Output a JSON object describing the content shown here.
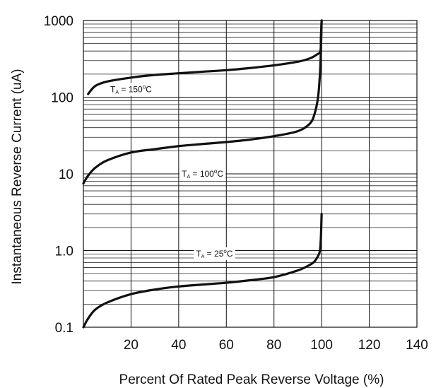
{
  "chart_data": {
    "type": "line",
    "title": "",
    "xlabel": "Percent  Of  Rated  Peak Reverse  Voltage (%)",
    "ylabel": "Instantaneous  Reverse Current (uA)",
    "x_scale": "linear",
    "y_scale": "log",
    "xlim": [
      0,
      140
    ],
    "ylim": [
      0.1,
      1000
    ],
    "x_ticks": [
      20,
      40,
      60,
      80,
      100,
      120,
      140
    ],
    "x_tick_labels": [
      "20",
      "40",
      "60",
      "80",
      "100",
      "120",
      "140"
    ],
    "y_ticks": [
      0.1,
      1,
      10,
      100,
      1000
    ],
    "y_tick_labels": [
      "0.1",
      "1.0",
      "10",
      "100",
      "1000"
    ],
    "grid": true,
    "legend": "none",
    "series": [
      {
        "annotation": {
          "main": "T",
          "sub": "A",
          "rest": " = 150",
          "deg": "o",
          "unit": "C"
        },
        "x": [
          2,
          5,
          10,
          20,
          30,
          40,
          50,
          60,
          70,
          80,
          90,
          95,
          98,
          99.5,
          99.7,
          100
        ],
        "y": [
          110,
          140,
          160,
          180,
          195,
          205,
          215,
          225,
          240,
          260,
          290,
          320,
          360,
          400,
          600,
          1000
        ]
      },
      {
        "annotation": {
          "main": "T",
          "sub": "A",
          "rest": " = 100",
          "deg": "o",
          "unit": "C"
        },
        "x": [
          0,
          2,
          5,
          10,
          20,
          30,
          40,
          50,
          60,
          70,
          80,
          90,
          95,
          97,
          98.5,
          99.3,
          99.7,
          100
        ],
        "y": [
          7.5,
          9.5,
          12,
          15,
          19,
          21,
          23,
          24.5,
          26,
          28,
          31,
          36,
          45,
          60,
          100,
          200,
          400,
          1000
        ]
      },
      {
        "annotation": {
          "main": "T",
          "sub": "A",
          "rest": " = 25",
          "deg": "o",
          "unit": "C"
        },
        "x": [
          0,
          2,
          5,
          10,
          20,
          30,
          40,
          50,
          60,
          70,
          80,
          90,
          95,
          97,
          98.5,
          99.3,
          99.7,
          100
        ],
        "y": [
          0.1,
          0.13,
          0.17,
          0.21,
          0.27,
          0.31,
          0.34,
          0.36,
          0.38,
          0.41,
          0.45,
          0.55,
          0.65,
          0.72,
          0.85,
          1.0,
          1.5,
          3
        ]
      }
    ]
  }
}
